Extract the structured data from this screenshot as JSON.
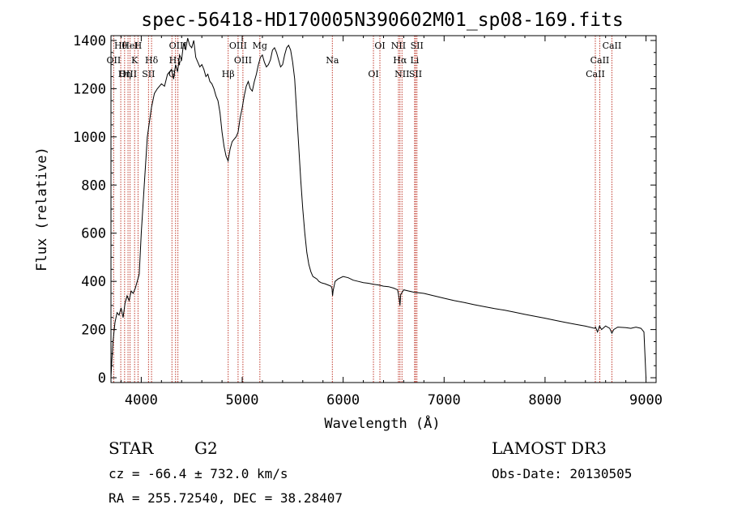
{
  "chart_data": {
    "type": "line",
    "title": "spec-56418-HD170005N390602M01_sp08-169.fits",
    "xlabel": "Wavelength (Å)",
    "ylabel": "Flux (relative)",
    "xlim": [
      3700,
      9100
    ],
    "ylim": [
      -20,
      1420
    ],
    "x_ticks": [
      4000,
      5000,
      6000,
      7000,
      8000,
      9000
    ],
    "y_ticks": [
      0,
      200,
      400,
      600,
      800,
      1000,
      1200,
      1400
    ],
    "grid": false,
    "series": [
      {
        "name": "spectrum",
        "x": [
          3700,
          3710,
          3720,
          3740,
          3760,
          3780,
          3800,
          3820,
          3840,
          3860,
          3880,
          3900,
          3920,
          3940,
          3960,
          3980,
          4000,
          4030,
          4060,
          4100,
          4130,
          4160,
          4200,
          4230,
          4260,
          4300,
          4320,
          4340,
          4360,
          4380,
          4400,
          4420,
          4440,
          4460,
          4480,
          4500,
          4520,
          4540,
          4560,
          4580,
          4600,
          4620,
          4640,
          4660,
          4680,
          4700,
          4720,
          4740,
          4760,
          4780,
          4800,
          4820,
          4840,
          4860,
          4880,
          4900,
          4920,
          4940,
          4960,
          4980,
          5000,
          5020,
          5040,
          5060,
          5080,
          5100,
          5120,
          5140,
          5160,
          5180,
          5200,
          5220,
          5240,
          5260,
          5280,
          5300,
          5320,
          5340,
          5360,
          5380,
          5400,
          5420,
          5440,
          5460,
          5480,
          5500,
          5520,
          5540,
          5560,
          5580,
          5600,
          5620,
          5640,
          5660,
          5680,
          5700,
          5720,
          5740,
          5760,
          5780,
          5800,
          5820,
          5850,
          5880,
          5890,
          5895,
          5900,
          5920,
          5950,
          6000,
          6050,
          6100,
          6150,
          6200,
          6250,
          6300,
          6350,
          6400,
          6450,
          6500,
          6540,
          6555,
          6563,
          6570,
          6600,
          6650,
          6700,
          6800,
          6900,
          7000,
          7100,
          7200,
          7300,
          7400,
          7500,
          7600,
          7700,
          7800,
          7900,
          8000,
          8100,
          8200,
          8300,
          8400,
          8490,
          8500,
          8520,
          8540,
          8560,
          8600,
          8640,
          8662,
          8680,
          8720,
          8800,
          8850,
          8900,
          8950,
          8980,
          9000
        ],
        "values": [
          0,
          80,
          150,
          230,
          270,
          260,
          290,
          250,
          310,
          340,
          320,
          360,
          350,
          370,
          400,
          430,
          600,
          800,
          1000,
          1120,
          1180,
          1200,
          1220,
          1210,
          1260,
          1280,
          1240,
          1300,
          1270,
          1340,
          1320,
          1390,
          1360,
          1410,
          1380,
          1370,
          1400,
          1330,
          1310,
          1290,
          1300,
          1280,
          1250,
          1260,
          1230,
          1220,
          1200,
          1170,
          1150,
          1100,
          1020,
          960,
          920,
          900,
          950,
          980,
          990,
          1000,
          1020,
          1080,
          1120,
          1170,
          1210,
          1230,
          1200,
          1190,
          1230,
          1260,
          1300,
          1330,
          1340,
          1310,
          1290,
          1300,
          1320,
          1360,
          1370,
          1350,
          1320,
          1290,
          1300,
          1340,
          1370,
          1380,
          1360,
          1310,
          1240,
          1100,
          960,
          820,
          700,
          600,
          520,
          470,
          440,
          420,
          415,
          410,
          400,
          395,
          392,
          390,
          385,
          380,
          370,
          340,
          360,
          400,
          410,
          420,
          415,
          405,
          400,
          395,
          392,
          388,
          385,
          380,
          378,
          372,
          365,
          330,
          300,
          345,
          365,
          360,
          355,
          350,
          340,
          330,
          320,
          312,
          303,
          295,
          287,
          280,
          272,
          263,
          255,
          247,
          238,
          230,
          222,
          214,
          205,
          210,
          190,
          215,
          200,
          215,
          205,
          185,
          200,
          210,
          208,
          205,
          210,
          205,
          190,
          0
        ]
      }
    ],
    "spectral_lines": [
      {
        "name": "Hθ",
        "wl": 3797
      },
      {
        "name": "OII",
        "wl": 3727
      },
      {
        "name": "OIII",
        "wl": 3869
      },
      {
        "name": "HeI",
        "wl": 3889
      },
      {
        "name": "K",
        "wl": 3934
      },
      {
        "name": "Hη",
        "wl": 3835
      },
      {
        "name": "H",
        "wl": 3968
      },
      {
        "name": "Hδ",
        "wl": 4102
      },
      {
        "name": "SII",
        "wl": 4072
      },
      {
        "name": "OIII",
        "wl": 4363
      },
      {
        "name": "Hγ",
        "wl": 4340
      },
      {
        "name": "G",
        "wl": 4304
      },
      {
        "name": "OIII",
        "wl": 4959
      },
      {
        "name": "OIII",
        "wl": 5007
      },
      {
        "name": "Hβ",
        "wl": 4861
      },
      {
        "name": "Mg",
        "wl": 5175
      },
      {
        "name": "Na",
        "wl": 5893
      },
      {
        "name": "OI",
        "wl": 6300
      },
      {
        "name": "OI",
        "wl": 6364
      },
      {
        "name": "Hα",
        "wl": 6563
      },
      {
        "name": "SII",
        "wl": 6717
      },
      {
        "name": "NII",
        "wl": 6548
      },
      {
        "name": "Li",
        "wl": 6708
      },
      {
        "name": "NII",
        "wl": 6583
      },
      {
        "name": "SII",
        "wl": 6731
      },
      {
        "name": "CaII",
        "wl": 8542
      },
      {
        "name": "CaII",
        "wl": 8498
      },
      {
        "name": "CaII",
        "wl": 8662
      }
    ]
  },
  "info": {
    "class": "STAR",
    "subclass": "G2",
    "survey": "LAMOST DR3",
    "cz": "cz = -66.4 ± 732.0 km/s",
    "obs_date": "Obs-Date: 20130505",
    "coords": "RA = 255.72540, DEC =  38.28407"
  }
}
